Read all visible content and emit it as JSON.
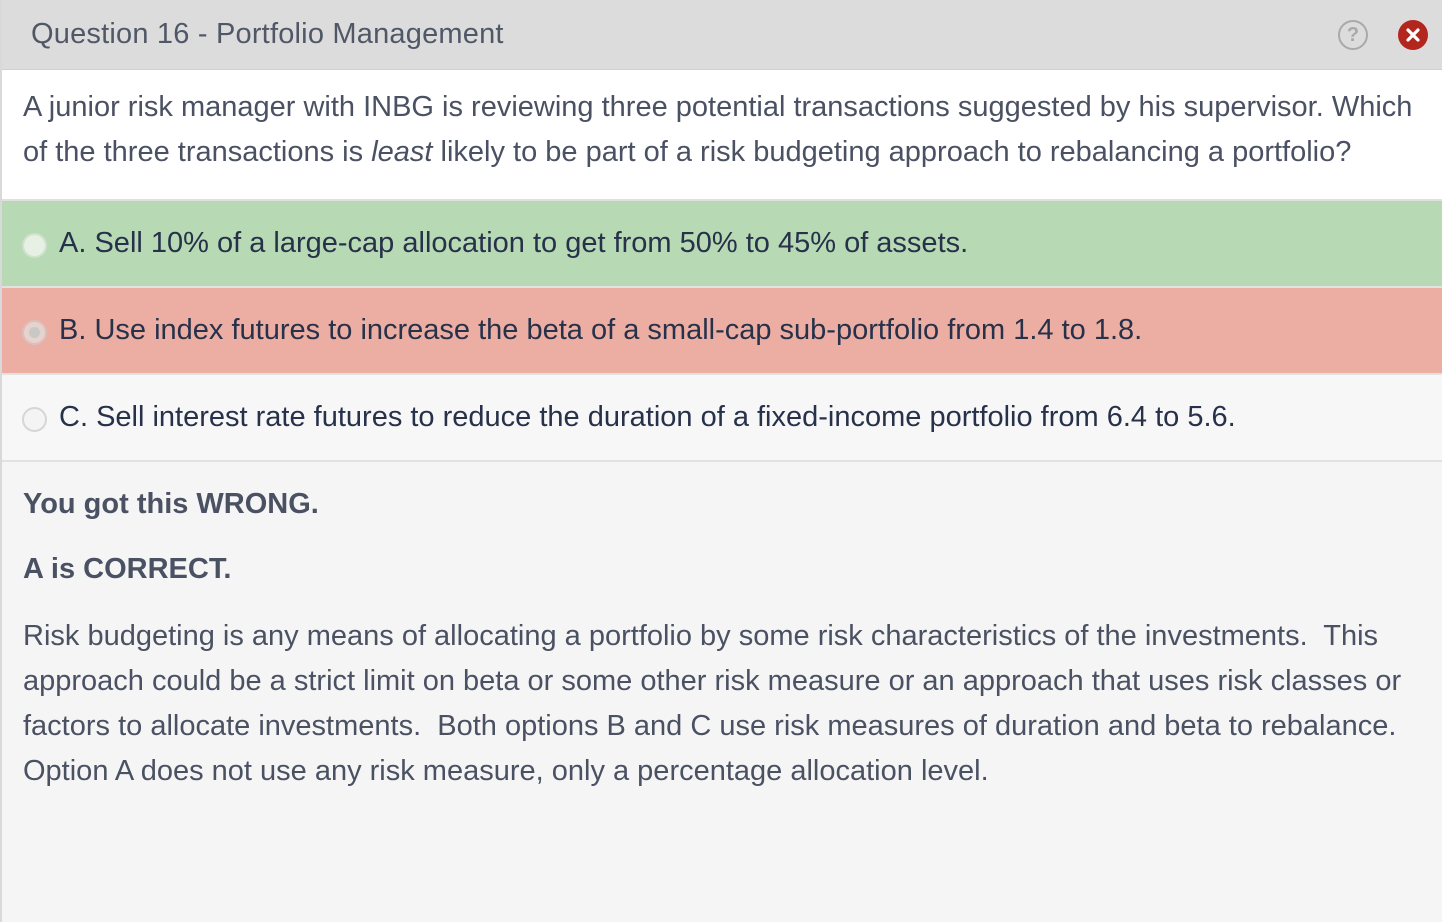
{
  "header": {
    "title": "Question 16 - Portfolio Management",
    "help_icon": "question-circle-icon",
    "close_icon": "close-circle-icon",
    "close_color": "#b3261e"
  },
  "question": {
    "text_before": "A junior risk manager with INBG is reviewing three potential transactions suggested by his supervisor. Which of the three transactions is ",
    "emphasis": "least",
    "text_after": " likely to be part of a risk budgeting approach to rebalancing a portfolio?"
  },
  "options": [
    {
      "letter": "A.",
      "text": "Sell 10% of a large-cap allocation to get from 50% to 45% of assets.",
      "state": "correct",
      "color": "#b7dab5"
    },
    {
      "letter": "B.",
      "text": "Use index futures to increase the beta of a small-cap sub-portfolio from 1.4 to 1.8.",
      "state": "selected-wrong",
      "color": "#ecaea3"
    },
    {
      "letter": "C.",
      "text": "Sell interest rate futures to reduce the duration of a fixed-income portfolio from 6.4 to 5.6.",
      "state": "neutral",
      "color": "#f7f7f7"
    }
  ],
  "feedback": {
    "result": "You got this WRONG.",
    "correct_answer": "A is CORRECT.",
    "explanation": "Risk budgeting is any means of allocating a portfolio by some risk characteristics of the investments.  This approach could be a strict limit on beta or some other risk measure or an approach that uses risk classes or factors to allocate investments.  Both options B and C use risk measures of duration and beta to rebalance.  Option A does not use any risk measure, only a percentage allocation level."
  }
}
